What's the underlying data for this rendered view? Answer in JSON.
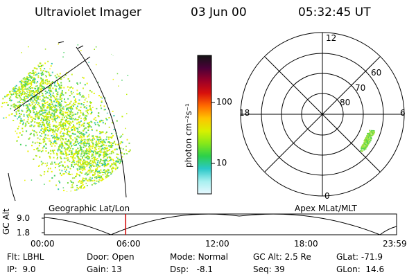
{
  "header": {
    "instrument": "Ultraviolet Imager",
    "date": "03 Jun 00",
    "time": "05:32:45 UT"
  },
  "colorbar": {
    "unit_label": "photon cm⁻²s⁻¹",
    "tick_labels": [
      "100",
      "10"
    ],
    "colors": [
      "#141414",
      "#4a0038",
      "#9a0028",
      "#d8100c",
      "#ff6a00",
      "#ffc400",
      "#d8f000",
      "#86e81a",
      "#2cd04a",
      "#2ac8c8",
      "#a8f0f0",
      "#e8f8ff"
    ]
  },
  "geo_panel": {
    "label": "Geographic Lat/Lon",
    "glow_color": "#8ed82a"
  },
  "apex_panel": {
    "label": "Apex MLat/MLT",
    "mlt_labels": {
      "top": "12",
      "left": "18",
      "right": "6",
      "bottom": "0"
    },
    "lat_labels": [
      "60",
      "70",
      "80"
    ],
    "blob_color": "#5ad64a"
  },
  "altitude_strip": {
    "axis_label": "GC Alt",
    "y_ticks": [
      "9.0",
      "1.8"
    ],
    "x_ticks": [
      "00:00",
      "06:00",
      "12:00",
      "18:00",
      "23:59"
    ],
    "marker_color": "#d00000",
    "marker_fraction": 0.2309
  },
  "info": {
    "flt": {
      "label": "Flt:",
      "value": "LBHL"
    },
    "ip": {
      "label": "IP:",
      "value": "9.0"
    },
    "door": {
      "label": "Door:",
      "value": "Open"
    },
    "gain": {
      "label": "Gain:",
      "value": "13"
    },
    "mode": {
      "label": "Mode:",
      "value": "Normal"
    },
    "dsp": {
      "label": "Dsp:",
      "value": "-8.1"
    },
    "gcalt": {
      "label": "GC Alt:",
      "value": "2.5 Re"
    },
    "seq": {
      "label": "Seq:",
      "value": "39"
    },
    "glat": {
      "label": "GLat:",
      "value": "-71.9"
    },
    "glon": {
      "label": "GLon:",
      "value": "14.6"
    }
  }
}
